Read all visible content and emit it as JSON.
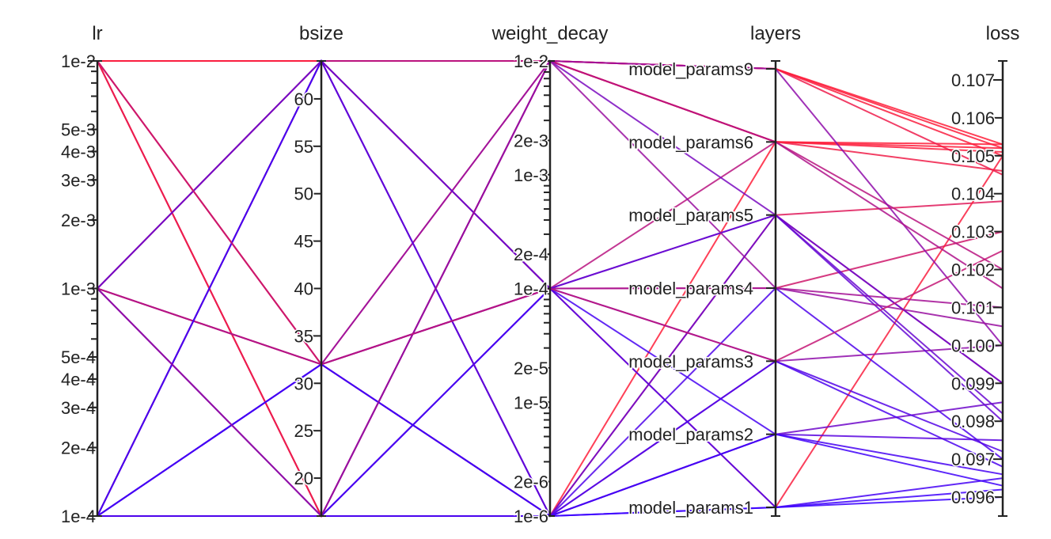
{
  "chart_data": {
    "type": "parallel_coordinates",
    "axes": [
      {
        "name": "lr",
        "scale": "log",
        "range": [
          0.0001,
          0.01
        ],
        "ticks": [
          "1e-2",
          "5e-3",
          "4e-3",
          "3e-3",
          "2e-3",
          "1e-3",
          "5e-4",
          "4e-4",
          "3e-4",
          "2e-4",
          "1e-4"
        ]
      },
      {
        "name": "bsize",
        "scale": "linear",
        "range": [
          16,
          64
        ],
        "ticks": [
          "60",
          "55",
          "50",
          "45",
          "40",
          "35",
          "30",
          "25",
          "20"
        ]
      },
      {
        "name": "weight_decay",
        "scale": "log",
        "range": [
          1e-06,
          0.01
        ],
        "ticks": [
          "1e-2",
          "2e-3",
          "1e-3",
          "2e-4",
          "1e-4",
          "2e-5",
          "1e-5",
          "2e-6",
          "1e-6"
        ]
      },
      {
        "name": "layers",
        "scale": "categorical",
        "categories": [
          "model_params9",
          "model_params6",
          "model_params5",
          "model_params4",
          "model_params3",
          "model_params2",
          "model_params1"
        ]
      },
      {
        "name": "loss",
        "scale": "linear",
        "range": [
          0.0955,
          0.1075
        ],
        "ticks": [
          "0.107",
          "0.106",
          "0.105",
          "0.104",
          "0.103",
          "0.102",
          "0.101",
          "0.100",
          "0.099",
          "0.098",
          "0.097",
          "0.096"
        ]
      }
    ],
    "color_by": "loss",
    "colormap": {
      "low": "#3a00ff",
      "high": "#ff1f3a"
    },
    "runs": [
      [
        0.01,
        64,
        0.01,
        "model_params9",
        0.1053
      ],
      [
        0.01,
        64,
        0.01,
        "model_params6",
        0.1051
      ],
      [
        0.01,
        64,
        0.01,
        "model_params9",
        0.105
      ],
      [
        0.01,
        16,
        0.01,
        "model_params6",
        0.1046
      ],
      [
        0.01,
        16,
        1e-06,
        "model_params5",
        0.1038
      ],
      [
        0.01,
        32,
        0.0001,
        "model_params4",
        0.103
      ],
      [
        0.01,
        32,
        1e-06,
        "model_params6",
        0.1053
      ],
      [
        0.01,
        64,
        0.0001,
        "model_params1",
        0.105
      ],
      [
        0.01,
        16,
        0.01,
        "model_params9",
        0.1045
      ],
      [
        0.001,
        64,
        0.01,
        "model_params6",
        0.1052
      ],
      [
        0.001,
        64,
        0.0001,
        "model_params4",
        0.101
      ],
      [
        0.001,
        32,
        0.01,
        "model_params9",
        0.1052
      ],
      [
        0.001,
        32,
        1e-06,
        "model_params3",
        0.1
      ],
      [
        0.001,
        16,
        0.0001,
        "model_params5",
        0.099
      ],
      [
        0.001,
        16,
        1e-06,
        "model_params2",
        0.0985
      ],
      [
        0.001,
        32,
        0.0001,
        "model_params6",
        0.102
      ],
      [
        0.0001,
        16,
        1e-06,
        "model_params1",
        0.0962
      ],
      [
        0.0001,
        16,
        1e-06,
        "model_params3",
        0.0968
      ],
      [
        0.0001,
        64,
        1e-06,
        "model_params2",
        0.0975
      ],
      [
        0.0001,
        32,
        0.01,
        "model_params9",
        0.1
      ],
      [
        0.0001,
        64,
        0.0001,
        "model_params5",
        0.098
      ],
      [
        0.0001,
        32,
        1e-06,
        "model_params4",
        0.097
      ],
      [
        0.0001,
        16,
        0.0001,
        "model_params1",
        0.0965
      ],
      [
        0.0001,
        64,
        0.01,
        "model_params6",
        0.1015
      ],
      [
        0.0001,
        32,
        0.0001,
        "model_params3",
        0.0972
      ],
      [
        0.0001,
        16,
        0.01,
        "model_params5",
        0.099
      ],
      [
        0.0001,
        64,
        1e-06,
        "model_params1",
        0.096
      ],
      [
        0.0001,
        16,
        0.0001,
        "model_params2",
        0.0966
      ],
      [
        0.001,
        64,
        1e-06,
        "model_params5",
        0.0982
      ],
      [
        0.0001,
        32,
        1e-06,
        "model_params2",
        0.0963
      ],
      [
        0.001,
        16,
        0.01,
        "model_params4",
        0.1005
      ],
      [
        0.01,
        32,
        0.0001,
        "model_params3",
        0.1025
      ]
    ]
  }
}
